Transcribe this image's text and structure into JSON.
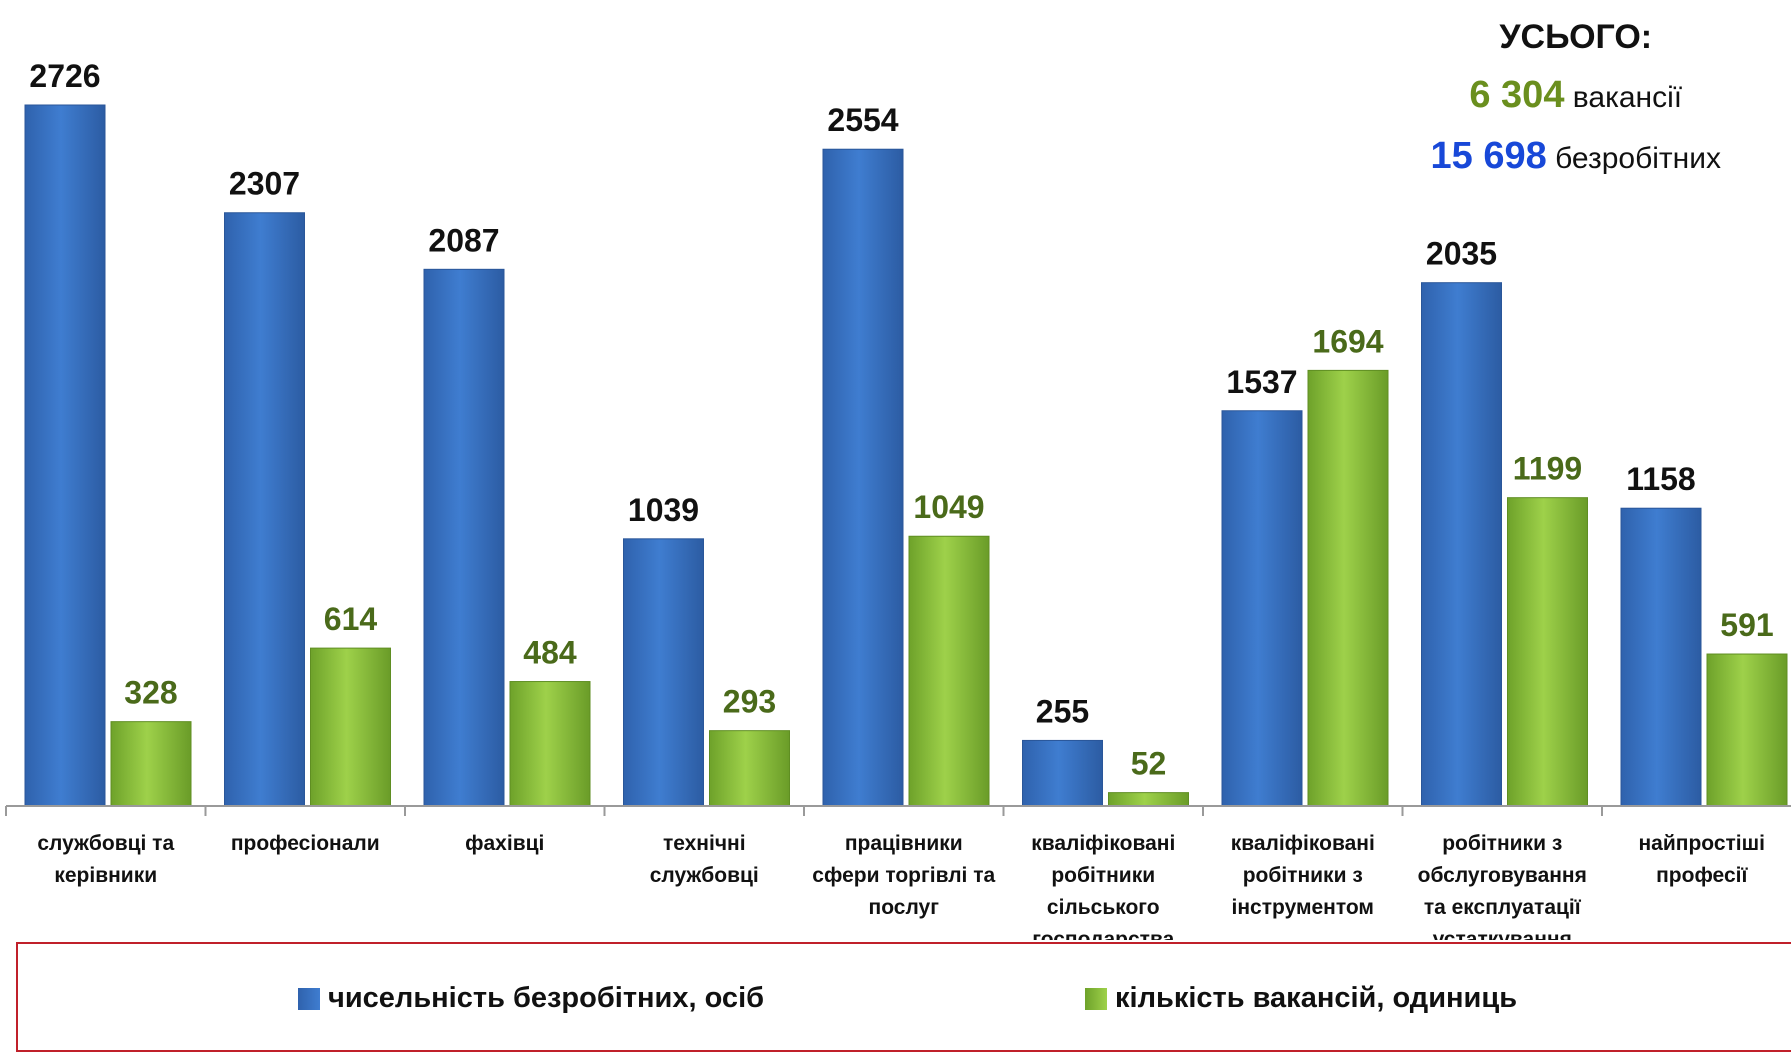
{
  "colors": {
    "unemployed": "#3a74c8",
    "vacancies": "#8cc63f",
    "unemployed_label": "#111111",
    "vacancies_label": "#4a6a1a",
    "totals_vacancies": "#6a8f1e",
    "totals_unemployed": "#1848d8",
    "legend_border": "#c0202a"
  },
  "totals": {
    "title": "УСЬОГО:",
    "vacancies_value": "6 304",
    "vacancies_label": "вакансії",
    "unemployed_value": "15 698",
    "unemployed_label": "безробітних"
  },
  "legend": {
    "unemployed": "чисельність безробітних, осіб",
    "vacancies": "кількість вакансій, одиниць"
  },
  "chart_data": {
    "type": "bar",
    "categories": [
      [
        "службовці та",
        "керівники"
      ],
      [
        "професіонали"
      ],
      [
        "фахівці"
      ],
      [
        "технічні",
        "службовці"
      ],
      [
        "працівники",
        "сфери торгівлі та",
        "послуг"
      ],
      [
        "кваліфіковані",
        "робітники",
        "сільського",
        "господарства"
      ],
      [
        "кваліфіковані",
        "робітники з",
        "інструментом"
      ],
      [
        "робітники з",
        "обслуговування",
        "та експлуатації",
        "устаткування"
      ],
      [
        "найпростіші",
        "професії"
      ]
    ],
    "series": [
      {
        "name": "чисельність безробітних, осіб",
        "values": [
          2726,
          2307,
          2087,
          1039,
          2554,
          255,
          1537,
          2035,
          1158
        ]
      },
      {
        "name": "кількість вакансій, одиниць",
        "values": [
          328,
          614,
          484,
          293,
          1049,
          52,
          1694,
          1199,
          591
        ]
      }
    ],
    "ylim": [
      0,
      2726
    ],
    "grid": false,
    "legend_position": "bottom"
  }
}
